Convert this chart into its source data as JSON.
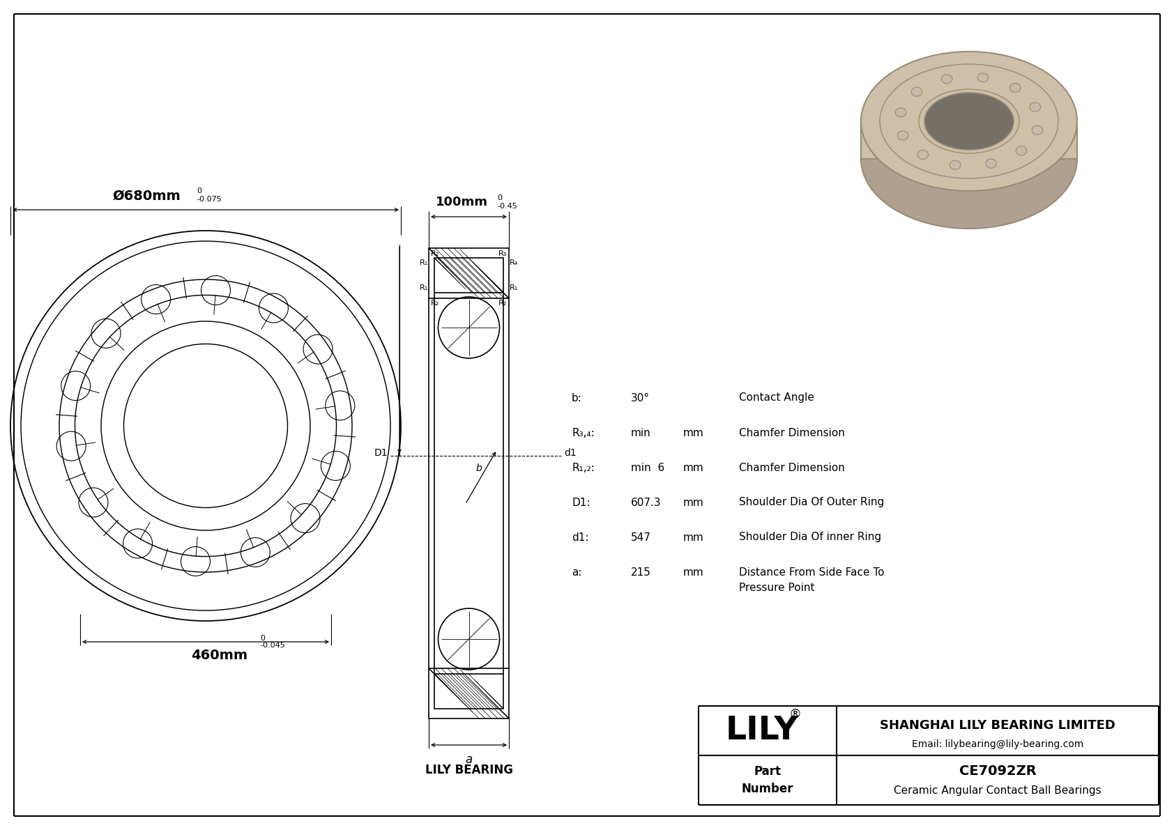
{
  "bg_color": "#ffffff",
  "outer_dim_label": "Ø680mm",
  "outer_tol_top": "0",
  "outer_tol_bot": "-0.075",
  "inner_dim_label": "460mm",
  "inner_tol_top": "0",
  "inner_tol_bot": "-0.045",
  "width_label": "100mm",
  "width_tol_top": "0",
  "width_tol_bot": "-0.45",
  "spec_b_label": "b:",
  "spec_b_val": "30°",
  "spec_b_desc": "Contact Angle",
  "spec_r34_label": "R₃,₄:",
  "spec_r34_val": "min",
  "spec_r34_unit": "mm",
  "spec_r34_desc": "Chamfer Dimension",
  "spec_r12_label": "R₁,₂:",
  "spec_r12_val": "min  6",
  "spec_r12_unit": "mm",
  "spec_r12_desc": "Chamfer Dimension",
  "spec_D1_label": "D1:",
  "spec_D1_val": "607.3",
  "spec_D1_unit": "mm",
  "spec_D1_desc": "Shoulder Dia Of Outer Ring",
  "spec_d1_label": "d1:",
  "spec_d1_val": "547",
  "spec_d1_unit": "mm",
  "spec_d1_desc": "Shoulder Dia Of inner Ring",
  "spec_a_label": "a:",
  "spec_a_val": "215",
  "spec_a_unit": "mm",
  "spec_a_desc": "Distance From Side Face To",
  "spec_a_desc2": "Pressure Point",
  "lily_bearing_label": "LILY BEARING",
  "logo_lily": "LILY",
  "logo_reg": "®",
  "company_name": "SHANGHAI LILY BEARING LIMITED",
  "company_email": "Email: lilybearing@lily-bearing.com",
  "part_number_label": "Part\nNumber",
  "part_number": "CE7092ZR",
  "part_desc": "Ceramic Angular Contact Ball Bearings",
  "bearing_color": "#cec0a8",
  "bearing_shadow": "#b0a090",
  "bearing_dark": "#9a8a78",
  "bearing_hole": "#888880",
  "bearing_ball": "#c8baa8"
}
